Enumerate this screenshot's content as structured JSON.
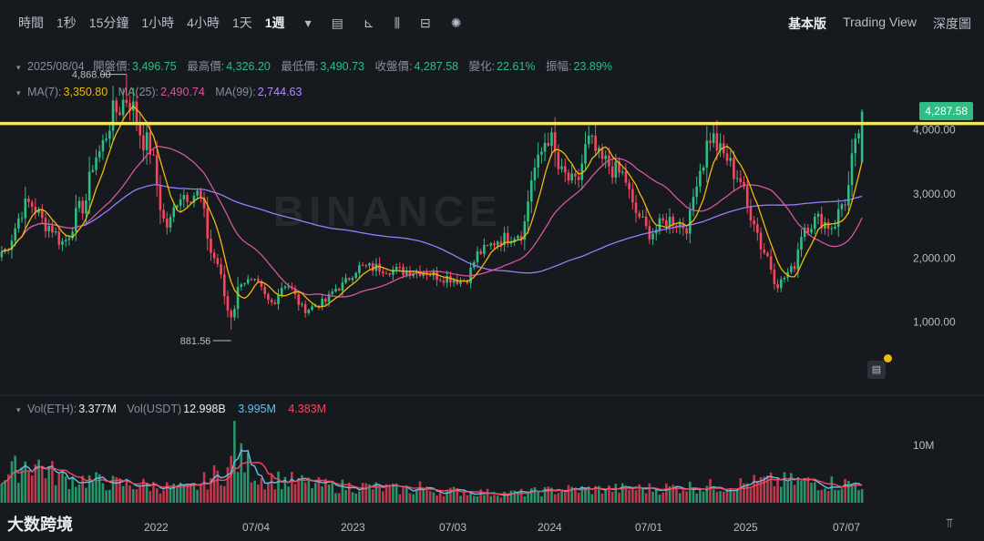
{
  "toolbar": {
    "intervals": [
      "時間",
      "1秒",
      "15分鐘",
      "1小時",
      "4小時",
      "1天",
      "1週"
    ],
    "active_interval": "1週",
    "icons": [
      "chevron-down-icon",
      "candlestick-type-icon",
      "indicator-icon",
      "chart-style-icon",
      "layout-icon",
      "gear-icon"
    ],
    "views": [
      "基本版",
      "Trading View",
      "深度圖"
    ],
    "active_view": "基本版"
  },
  "ohlc": {
    "date": "2025/08/04",
    "open_label": "開盤價:",
    "open": "3,496.75",
    "high_label": "最高價:",
    "high": "4,326.20",
    "low_label": "最低價:",
    "low": "3,490.73",
    "close_label": "收盤價:",
    "close": "4,287.58",
    "change_label": "變化:",
    "change": "22.61%",
    "amplitude_label": "振幅:",
    "amplitude": "23.89%"
  },
  "ma": {
    "ma7_label": "MA(7):",
    "ma7": "3,350.80",
    "ma25_label": "MA(25):",
    "ma25": "2,490.74",
    "ma99_label": "MA(99):",
    "ma99": "2,744.63"
  },
  "volume": {
    "eth_label": "Vol(ETH):",
    "eth": "3.377M",
    "usdt_label": "Vol(USDT)",
    "usdt": "12.998B",
    "ma_a": "3.995M",
    "ma_b": "4.383M"
  },
  "price_label": "4,287.58",
  "watermark": "BINANCE",
  "logo_text": "大数跨境",
  "colors": {
    "up": "#2ebd85",
    "down": "#f6465d",
    "ma7": "#f0b90b",
    "ma25": "#d6569a",
    "ma99": "#9b7bff",
    "hline": "#f5e663",
    "bg": "#161a1e"
  },
  "chart_data": [
    {
      "type": "candlestick",
      "title": "",
      "ylim": [
        0,
        5200
      ],
      "y_ticks": [
        1000,
        2000,
        3000,
        4000
      ],
      "y_tick_labels": [
        "1,000.00",
        "2,000.00",
        "3,000.00",
        "4,000.00"
      ],
      "x_tick_labels": [
        "2022",
        "07/04",
        "2023",
        "07/03",
        "2024",
        "07/01",
        "2025",
        "07/07"
      ],
      "annotations": [
        {
          "text": "4,868.00",
          "value": 4868
        },
        {
          "text": "881.56",
          "value": 881.56
        }
      ],
      "horizontal_line": 4100,
      "anchors": [
        {
          "t": 0,
          "p": 2100
        },
        {
          "t": 8,
          "p": 2850
        },
        {
          "t": 14,
          "p": 2500
        },
        {
          "t": 18,
          "p": 2250
        },
        {
          "t": 24,
          "p": 2800
        },
        {
          "t": 28,
          "p": 3600
        },
        {
          "t": 34,
          "p": 4300
        },
        {
          "t": 37,
          "p": 4500
        },
        {
          "t": 43,
          "p": 3800
        },
        {
          "t": 49,
          "p": 2500
        },
        {
          "t": 53,
          "p": 3000
        },
        {
          "t": 58,
          "p": 3000
        },
        {
          "t": 63,
          "p": 2000
        },
        {
          "t": 68,
          "p": 1100
        },
        {
          "t": 71,
          "p": 1650
        },
        {
          "t": 75,
          "p": 1600
        },
        {
          "t": 80,
          "p": 1300
        },
        {
          "t": 84,
          "p": 1600
        },
        {
          "t": 90,
          "p": 1200
        },
        {
          "t": 95,
          "p": 1300
        },
        {
          "t": 100,
          "p": 1550
        },
        {
          "t": 106,
          "p": 1850
        },
        {
          "t": 112,
          "p": 1850
        },
        {
          "t": 118,
          "p": 1800
        },
        {
          "t": 124,
          "p": 1800
        },
        {
          "t": 131,
          "p": 1700
        },
        {
          "t": 137,
          "p": 1650
        },
        {
          "t": 142,
          "p": 2100
        },
        {
          "t": 148,
          "p": 2300
        },
        {
          "t": 154,
          "p": 2400
        },
        {
          "t": 158,
          "p": 3400
        },
        {
          "t": 162,
          "p": 3900
        },
        {
          "t": 166,
          "p": 3300
        },
        {
          "t": 170,
          "p": 3150
        },
        {
          "t": 174,
          "p": 3800
        },
        {
          "t": 178,
          "p": 3500
        },
        {
          "t": 184,
          "p": 3300
        },
        {
          "t": 188,
          "p": 2700
        },
        {
          "t": 192,
          "p": 2400
        },
        {
          "t": 198,
          "p": 2600
        },
        {
          "t": 203,
          "p": 2500
        },
        {
          "t": 207,
          "p": 3400
        },
        {
          "t": 210,
          "p": 3900
        },
        {
          "t": 214,
          "p": 3600
        },
        {
          "t": 218,
          "p": 3300
        },
        {
          "t": 222,
          "p": 2700
        },
        {
          "t": 226,
          "p": 2100
        },
        {
          "t": 230,
          "p": 1600
        },
        {
          "t": 234,
          "p": 1800
        },
        {
          "t": 238,
          "p": 2500
        },
        {
          "t": 242,
          "p": 2600
        },
        {
          "t": 246,
          "p": 2500
        },
        {
          "t": 250,
          "p": 2900
        },
        {
          "t": 253,
          "p": 3700
        },
        {
          "t": 255,
          "p": 4287
        }
      ],
      "current": {
        "open": 3496.75,
        "high": 4326.2,
        "low": 3490.73,
        "close": 4287.58
      }
    },
    {
      "type": "bar",
      "title": "",
      "y_tick_labels": [
        "10M"
      ],
      "ylim": [
        0,
        16
      ],
      "unit": "M",
      "anchors": [
        {
          "t": 0,
          "v": 5.5
        },
        {
          "t": 8,
          "v": 8.5
        },
        {
          "t": 20,
          "v": 5
        },
        {
          "t": 40,
          "v": 3.8
        },
        {
          "t": 55,
          "v": 3
        },
        {
          "t": 65,
          "v": 6
        },
        {
          "t": 70,
          "v": 9
        },
        {
          "t": 78,
          "v": 5
        },
        {
          "t": 100,
          "v": 3.5
        },
        {
          "t": 130,
          "v": 2.5
        },
        {
          "t": 150,
          "v": 2
        },
        {
          "t": 170,
          "v": 2.8
        },
        {
          "t": 190,
          "v": 3
        },
        {
          "t": 210,
          "v": 3.5
        },
        {
          "t": 230,
          "v": 4.5
        },
        {
          "t": 255,
          "v": 4
        }
      ],
      "spikes": [
        {
          "t": 69,
          "v": 19
        },
        {
          "t": 124,
          "v": 4.5
        },
        {
          "t": 226,
          "v": 5.5
        }
      ]
    }
  ]
}
